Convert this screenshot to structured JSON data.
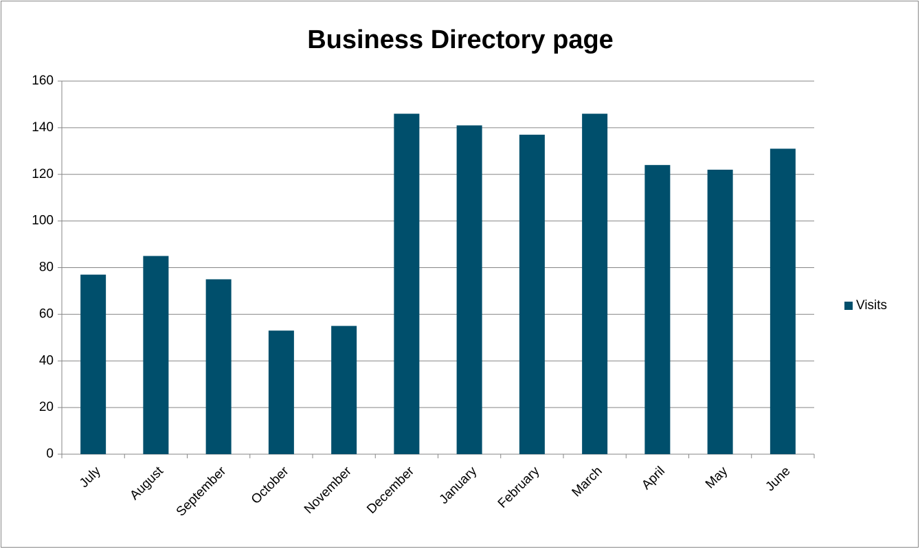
{
  "chart_data": {
    "type": "bar",
    "title": "Business Directory page",
    "categories": [
      "July",
      "August",
      "September",
      "October",
      "November",
      "December",
      "January",
      "February",
      "March",
      "April",
      "May",
      "June"
    ],
    "series": [
      {
        "name": "Visits",
        "color": "#004f6c",
        "values": [
          77,
          85,
          75,
          53,
          55,
          146,
          141,
          137,
          146,
          124,
          122,
          131
        ]
      }
    ],
    "ylim": [
      0,
      160
    ],
    "yticks": [
      0,
      20,
      40,
      60,
      80,
      100,
      120,
      140,
      160
    ],
    "grid": true,
    "legend": "right"
  }
}
